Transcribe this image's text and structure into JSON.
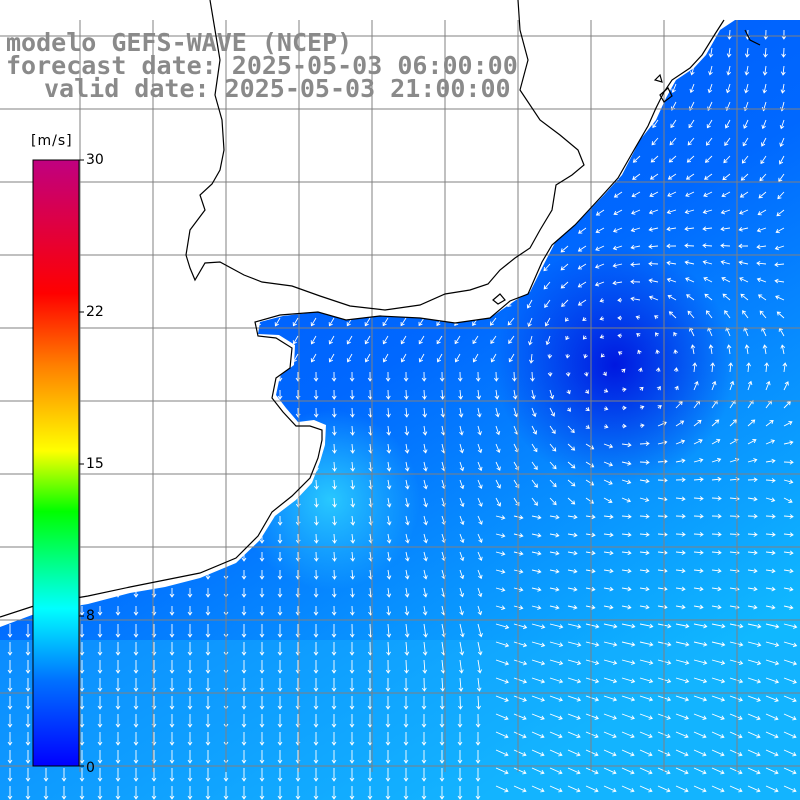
{
  "title": {
    "model": "modelo GEFS-WAVE (NCEP)",
    "forecast": "forecast date: 2025-05-03 06:00:00",
    "valid": "valid date: 2025-05-03 21:00:00"
  },
  "colorbar": {
    "unit": "[m/s]",
    "ticks": [
      "30",
      "22",
      "15",
      "8",
      "0"
    ],
    "colors": [
      "#0000ff",
      "#0090ff",
      "#00ffff",
      "#00ff00",
      "#ffff00",
      "#ff8000",
      "#ff0000",
      "#c00080"
    ]
  },
  "colors": {
    "land": "#ffffff",
    "coast": "#000000",
    "grid": "#808080",
    "arrow": "#ffffff",
    "ocean_calm": "#0020e8",
    "ocean_mid": "#0070ff",
    "ocean_fast": "#20d0ff"
  }
}
